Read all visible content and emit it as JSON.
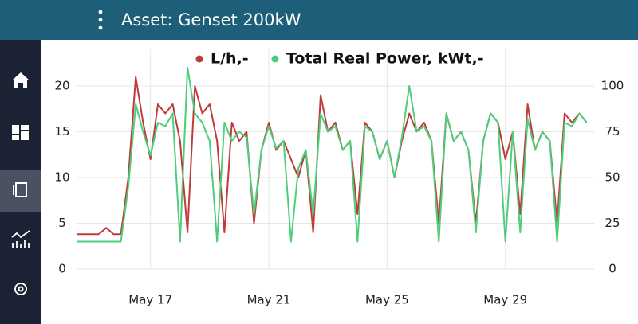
{
  "header": {
    "title": "Asset: Genset 200kW"
  },
  "chart_data": {
    "type": "line",
    "x": [
      14.5,
      14.75,
      15,
      15.25,
      15.5,
      15.75,
      16,
      16.25,
      16.5,
      16.75,
      17,
      17.25,
      17.5,
      17.75,
      18,
      18.25,
      18.5,
      18.75,
      19,
      19.25,
      19.5,
      19.75,
      20,
      20.25,
      20.5,
      20.75,
      21,
      21.25,
      21.5,
      21.75,
      22,
      22.25,
      22.5,
      22.75,
      23,
      23.25,
      23.5,
      23.75,
      24,
      24.25,
      24.5,
      24.75,
      25,
      25.25,
      25.5,
      25.75,
      26,
      26.25,
      26.5,
      26.75,
      27,
      27.25,
      27.5,
      27.75,
      28,
      28.25,
      28.5,
      28.75,
      29,
      29.25,
      29.5,
      29.75,
      30,
      30.25,
      30.5,
      30.75,
      31,
      31.25,
      31.5,
      31.75
    ],
    "series": [
      {
        "name": "L/h,-",
        "color": "#c23a3a",
        "values": [
          3.8,
          3.8,
          3.8,
          3.8,
          4.5,
          3.8,
          3.8,
          10,
          21,
          16,
          12,
          18,
          17,
          18,
          14,
          4,
          20,
          17,
          18,
          14,
          4,
          16,
          14,
          15,
          5,
          13,
          16,
          13,
          14,
          12,
          10,
          13,
          4,
          19,
          15,
          16,
          13,
          14,
          6,
          16,
          15,
          12,
          14,
          10,
          14,
          17,
          15,
          16,
          14,
          5,
          17,
          14,
          15,
          13,
          5,
          14,
          17,
          16,
          12,
          15,
          6,
          18,
          13,
          15,
          14,
          5,
          17,
          16,
          17,
          16
        ]
      },
      {
        "name": "Total Real Power, kWt,-",
        "color": "#4cce7a",
        "axis": "y2",
        "values": [
          15,
          15,
          15,
          15,
          15,
          15,
          15,
          45,
          90,
          75,
          62,
          80,
          78,
          85,
          15,
          110,
          85,
          80,
          70,
          15,
          80,
          70,
          75,
          72,
          30,
          65,
          78,
          66,
          70,
          15,
          55,
          65,
          30,
          85,
          75,
          78,
          65,
          70,
          15,
          78,
          75,
          60,
          70,
          50,
          72,
          100,
          75,
          78,
          70,
          15,
          85,
          70,
          75,
          65,
          20,
          70,
          85,
          80,
          15,
          75,
          20,
          82,
          65,
          75,
          70,
          15,
          80,
          78,
          85,
          80
        ]
      }
    ],
    "xlim": [
      14.5,
      32
    ],
    "xticks": [
      {
        "value": 17,
        "label": "May 17"
      },
      {
        "value": 21,
        "label": "May 21"
      },
      {
        "value": 25,
        "label": "May 25"
      },
      {
        "value": 29,
        "label": "May 29"
      }
    ],
    "ylim": [
      0,
      24
    ],
    "yticks": [
      0,
      5,
      10,
      15,
      20
    ],
    "y2lim": [
      0,
      120
    ],
    "y2ticks": [
      0,
      25,
      50,
      75,
      100
    ],
    "grid": true,
    "legend": "top"
  }
}
